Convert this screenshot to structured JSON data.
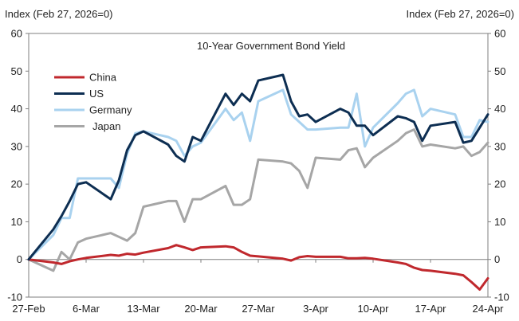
{
  "chart_data": {
    "type": "line",
    "title": "10-Year Government Bond Yield",
    "ylabel_left": "Index (Feb 27, 2026=0)",
    "ylabel_right": "Index (Feb 27, 2026=0)",
    "ylim": [
      -10,
      60
    ],
    "yticks": [
      -10,
      0,
      10,
      20,
      30,
      40,
      50,
      60
    ],
    "xlim": [
      "2026-02-27",
      "2026-04-24"
    ],
    "xticks": [
      {
        "date": "2026-02-27",
        "label": "27-Feb"
      },
      {
        "date": "2026-03-06",
        "label": "6-Mar"
      },
      {
        "date": "2026-03-13",
        "label": "13-Mar"
      },
      {
        "date": "2026-03-20",
        "label": "20-Mar"
      },
      {
        "date": "2026-03-27",
        "label": "27-Mar"
      },
      {
        "date": "2026-04-03",
        "label": "3-Apr"
      },
      {
        "date": "2026-04-10",
        "label": "10-Apr"
      },
      {
        "date": "2026-04-17",
        "label": "17-Apr"
      },
      {
        "date": "2026-04-24",
        "label": "24-Apr"
      }
    ],
    "grid": false,
    "legend_position": "top-left",
    "series": [
      {
        "name": "China",
        "color": "#c0282d",
        "points": [
          [
            "2026-02-27",
            0
          ],
          [
            "2026-03-02",
            -0.8
          ],
          [
            "2026-03-03",
            -1.2
          ],
          [
            "2026-03-04",
            -0.5
          ],
          [
            "2026-03-05",
            0
          ],
          [
            "2026-03-06",
            0.4
          ],
          [
            "2026-03-09",
            1.2
          ],
          [
            "2026-03-10",
            1.0
          ],
          [
            "2026-03-11",
            1.5
          ],
          [
            "2026-03-12",
            1.3
          ],
          [
            "2026-03-13",
            1.8
          ],
          [
            "2026-03-16",
            3.0
          ],
          [
            "2026-03-17",
            3.8
          ],
          [
            "2026-03-18",
            3.2
          ],
          [
            "2026-03-19",
            2.5
          ],
          [
            "2026-03-20",
            3.2
          ],
          [
            "2026-03-23",
            3.5
          ],
          [
            "2026-03-24",
            3.2
          ],
          [
            "2026-03-25",
            2.0
          ],
          [
            "2026-03-26",
            1.0
          ],
          [
            "2026-03-27",
            0.8
          ],
          [
            "2026-03-30",
            0.2
          ],
          [
            "2026-03-31",
            -0.3
          ],
          [
            "2026-04-01",
            0.6
          ],
          [
            "2026-04-02",
            0.9
          ],
          [
            "2026-04-03",
            0.7
          ],
          [
            "2026-04-06",
            0.7
          ],
          [
            "2026-04-07",
            0.3
          ],
          [
            "2026-04-08",
            0.3
          ],
          [
            "2026-04-09",
            0.4
          ],
          [
            "2026-04-10",
            0.2
          ],
          [
            "2026-04-13",
            -0.8
          ],
          [
            "2026-04-14",
            -1.2
          ],
          [
            "2026-04-15",
            -2.2
          ],
          [
            "2026-04-16",
            -2.8
          ],
          [
            "2026-04-17",
            -3.0
          ],
          [
            "2026-04-20",
            -3.8
          ],
          [
            "2026-04-21",
            -4.2
          ],
          [
            "2026-04-22",
            -6.0
          ],
          [
            "2026-04-23",
            -8.0
          ],
          [
            "2026-04-24",
            -5.0
          ]
        ]
      },
      {
        "name": "US",
        "color": "#0d2e52",
        "points": [
          [
            "2026-02-27",
            0
          ],
          [
            "2026-03-02",
            8.0
          ],
          [
            "2026-03-03",
            11.5
          ],
          [
            "2026-03-04",
            15.5
          ],
          [
            "2026-03-05",
            20.0
          ],
          [
            "2026-03-06",
            20.5
          ],
          [
            "2026-03-09",
            16.0
          ],
          [
            "2026-03-10",
            21.0
          ],
          [
            "2026-03-11",
            29.0
          ],
          [
            "2026-03-12",
            33.0
          ],
          [
            "2026-03-13",
            34.0
          ],
          [
            "2026-03-16",
            30.5
          ],
          [
            "2026-03-17",
            27.5
          ],
          [
            "2026-03-18",
            26.0
          ],
          [
            "2026-03-19",
            32.5
          ],
          [
            "2026-03-20",
            31.5
          ],
          [
            "2026-03-23",
            44.0
          ],
          [
            "2026-03-24",
            41.0
          ],
          [
            "2026-03-25",
            44.0
          ],
          [
            "2026-03-26",
            42.0
          ],
          [
            "2026-03-27",
            47.5
          ],
          [
            "2026-03-30",
            49.0
          ],
          [
            "2026-03-31",
            42.0
          ],
          [
            "2026-04-01",
            38.0
          ],
          [
            "2026-04-02",
            38.5
          ],
          [
            "2026-04-03",
            36.5
          ],
          [
            "2026-04-06",
            40.0
          ],
          [
            "2026-04-07",
            39.0
          ],
          [
            "2026-04-08",
            35.5
          ],
          [
            "2026-04-09",
            35.5
          ],
          [
            "2026-04-10",
            33.0
          ],
          [
            "2026-04-13",
            38.0
          ],
          [
            "2026-04-14",
            37.5
          ],
          [
            "2026-04-15",
            36.5
          ],
          [
            "2026-04-16",
            31.5
          ],
          [
            "2026-04-17",
            35.5
          ],
          [
            "2026-04-20",
            36.5
          ],
          [
            "2026-04-21",
            31.0
          ],
          [
            "2026-04-22",
            31.5
          ],
          [
            "2026-04-23",
            35.0
          ],
          [
            "2026-04-24",
            38.5
          ]
        ]
      },
      {
        "name": "Germany",
        "color": "#a9d2ef",
        "points": [
          [
            "2026-02-27",
            0
          ],
          [
            "2026-03-02",
            6.5
          ],
          [
            "2026-03-03",
            11.0
          ],
          [
            "2026-03-04",
            11.0
          ],
          [
            "2026-03-05",
            21.5
          ],
          [
            "2026-03-06",
            21.5
          ],
          [
            "2026-03-09",
            21.5
          ],
          [
            "2026-03-10",
            19.0
          ],
          [
            "2026-03-11",
            28.0
          ],
          [
            "2026-03-12",
            33.5
          ],
          [
            "2026-03-13",
            34.0
          ],
          [
            "2026-03-16",
            32.5
          ],
          [
            "2026-03-17",
            31.5
          ],
          [
            "2026-03-18",
            27.5
          ],
          [
            "2026-03-19",
            30.0
          ],
          [
            "2026-03-20",
            31.0
          ],
          [
            "2026-03-23",
            40.0
          ],
          [
            "2026-03-24",
            37.0
          ],
          [
            "2026-03-25",
            39.0
          ],
          [
            "2026-03-26",
            31.5
          ],
          [
            "2026-03-27",
            42.0
          ],
          [
            "2026-03-30",
            45.0
          ],
          [
            "2026-03-31",
            38.5
          ],
          [
            "2026-04-01",
            36.5
          ],
          [
            "2026-04-02",
            34.5
          ],
          [
            "2026-04-03",
            34.5
          ],
          [
            "2026-04-06",
            35.0
          ],
          [
            "2026-04-07",
            35.0
          ],
          [
            "2026-04-08",
            44.0
          ],
          [
            "2026-04-09",
            30.0
          ],
          [
            "2026-04-10",
            35.0
          ],
          [
            "2026-04-13",
            41.5
          ],
          [
            "2026-04-14",
            44.0
          ],
          [
            "2026-04-15",
            45.0
          ],
          [
            "2026-04-16",
            38.0
          ],
          [
            "2026-04-17",
            40.0
          ],
          [
            "2026-04-20",
            38.5
          ],
          [
            "2026-04-21",
            32.5
          ],
          [
            "2026-04-22",
            32.5
          ],
          [
            "2026-04-23",
            37.0
          ],
          [
            "2026-04-24",
            36.5
          ]
        ]
      },
      {
        "name": "Japan",
        "color": "#a6a6a6",
        "points": [
          [
            "2026-02-27",
            0
          ],
          [
            "2026-03-02",
            -3.0
          ],
          [
            "2026-03-03",
            2.0
          ],
          [
            "2026-03-04",
            0
          ],
          [
            "2026-03-05",
            4.5
          ],
          [
            "2026-03-06",
            5.5
          ],
          [
            "2026-03-09",
            7.0
          ],
          [
            "2026-03-10",
            6.0
          ],
          [
            "2026-03-11",
            5.0
          ],
          [
            "2026-03-12",
            7.0
          ],
          [
            "2026-03-13",
            14.0
          ],
          [
            "2026-03-16",
            15.5
          ],
          [
            "2026-03-17",
            15.5
          ],
          [
            "2026-03-18",
            10.0
          ],
          [
            "2026-03-19",
            16.0
          ],
          [
            "2026-03-20",
            16.0
          ],
          [
            "2026-03-23",
            19.5
          ],
          [
            "2026-03-24",
            14.5
          ],
          [
            "2026-03-25",
            14.5
          ],
          [
            "2026-03-26",
            16.0
          ],
          [
            "2026-03-27",
            26.5
          ],
          [
            "2026-03-30",
            26.0
          ],
          [
            "2026-03-31",
            25.5
          ],
          [
            "2026-04-01",
            23.5
          ],
          [
            "2026-04-02",
            19.0
          ],
          [
            "2026-04-03",
            27.0
          ],
          [
            "2026-04-06",
            26.5
          ],
          [
            "2026-04-07",
            29.0
          ],
          [
            "2026-04-08",
            29.5
          ],
          [
            "2026-04-09",
            24.5
          ],
          [
            "2026-04-10",
            27.0
          ],
          [
            "2026-04-13",
            31.5
          ],
          [
            "2026-04-14",
            33.5
          ],
          [
            "2026-04-15",
            34.5
          ],
          [
            "2026-04-16",
            30.0
          ],
          [
            "2026-04-17",
            30.5
          ],
          [
            "2026-04-20",
            29.5
          ],
          [
            "2026-04-21",
            30.0
          ],
          [
            "2026-04-22",
            27.5
          ],
          [
            "2026-04-23",
            28.5
          ],
          [
            "2026-04-24",
            31.0
          ]
        ]
      }
    ]
  }
}
